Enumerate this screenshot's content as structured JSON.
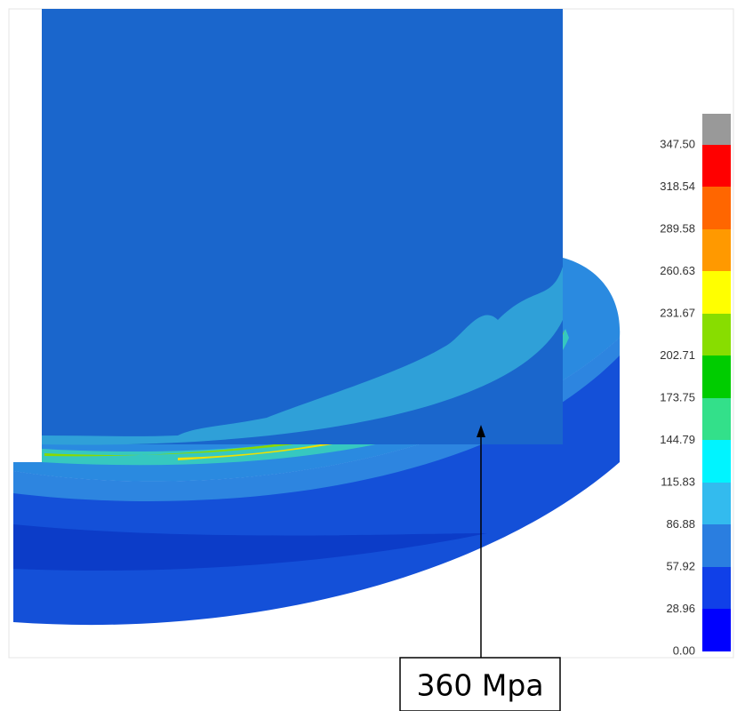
{
  "legend": {
    "labels": [
      "347.50",
      "318.54",
      "289.58",
      "260.63",
      "231.67",
      "202.71",
      "173.75",
      "144.79",
      "115.83",
      "86.88",
      "57.92",
      "28.96",
      "0.00"
    ]
  },
  "annotation": "360 Mpa"
}
